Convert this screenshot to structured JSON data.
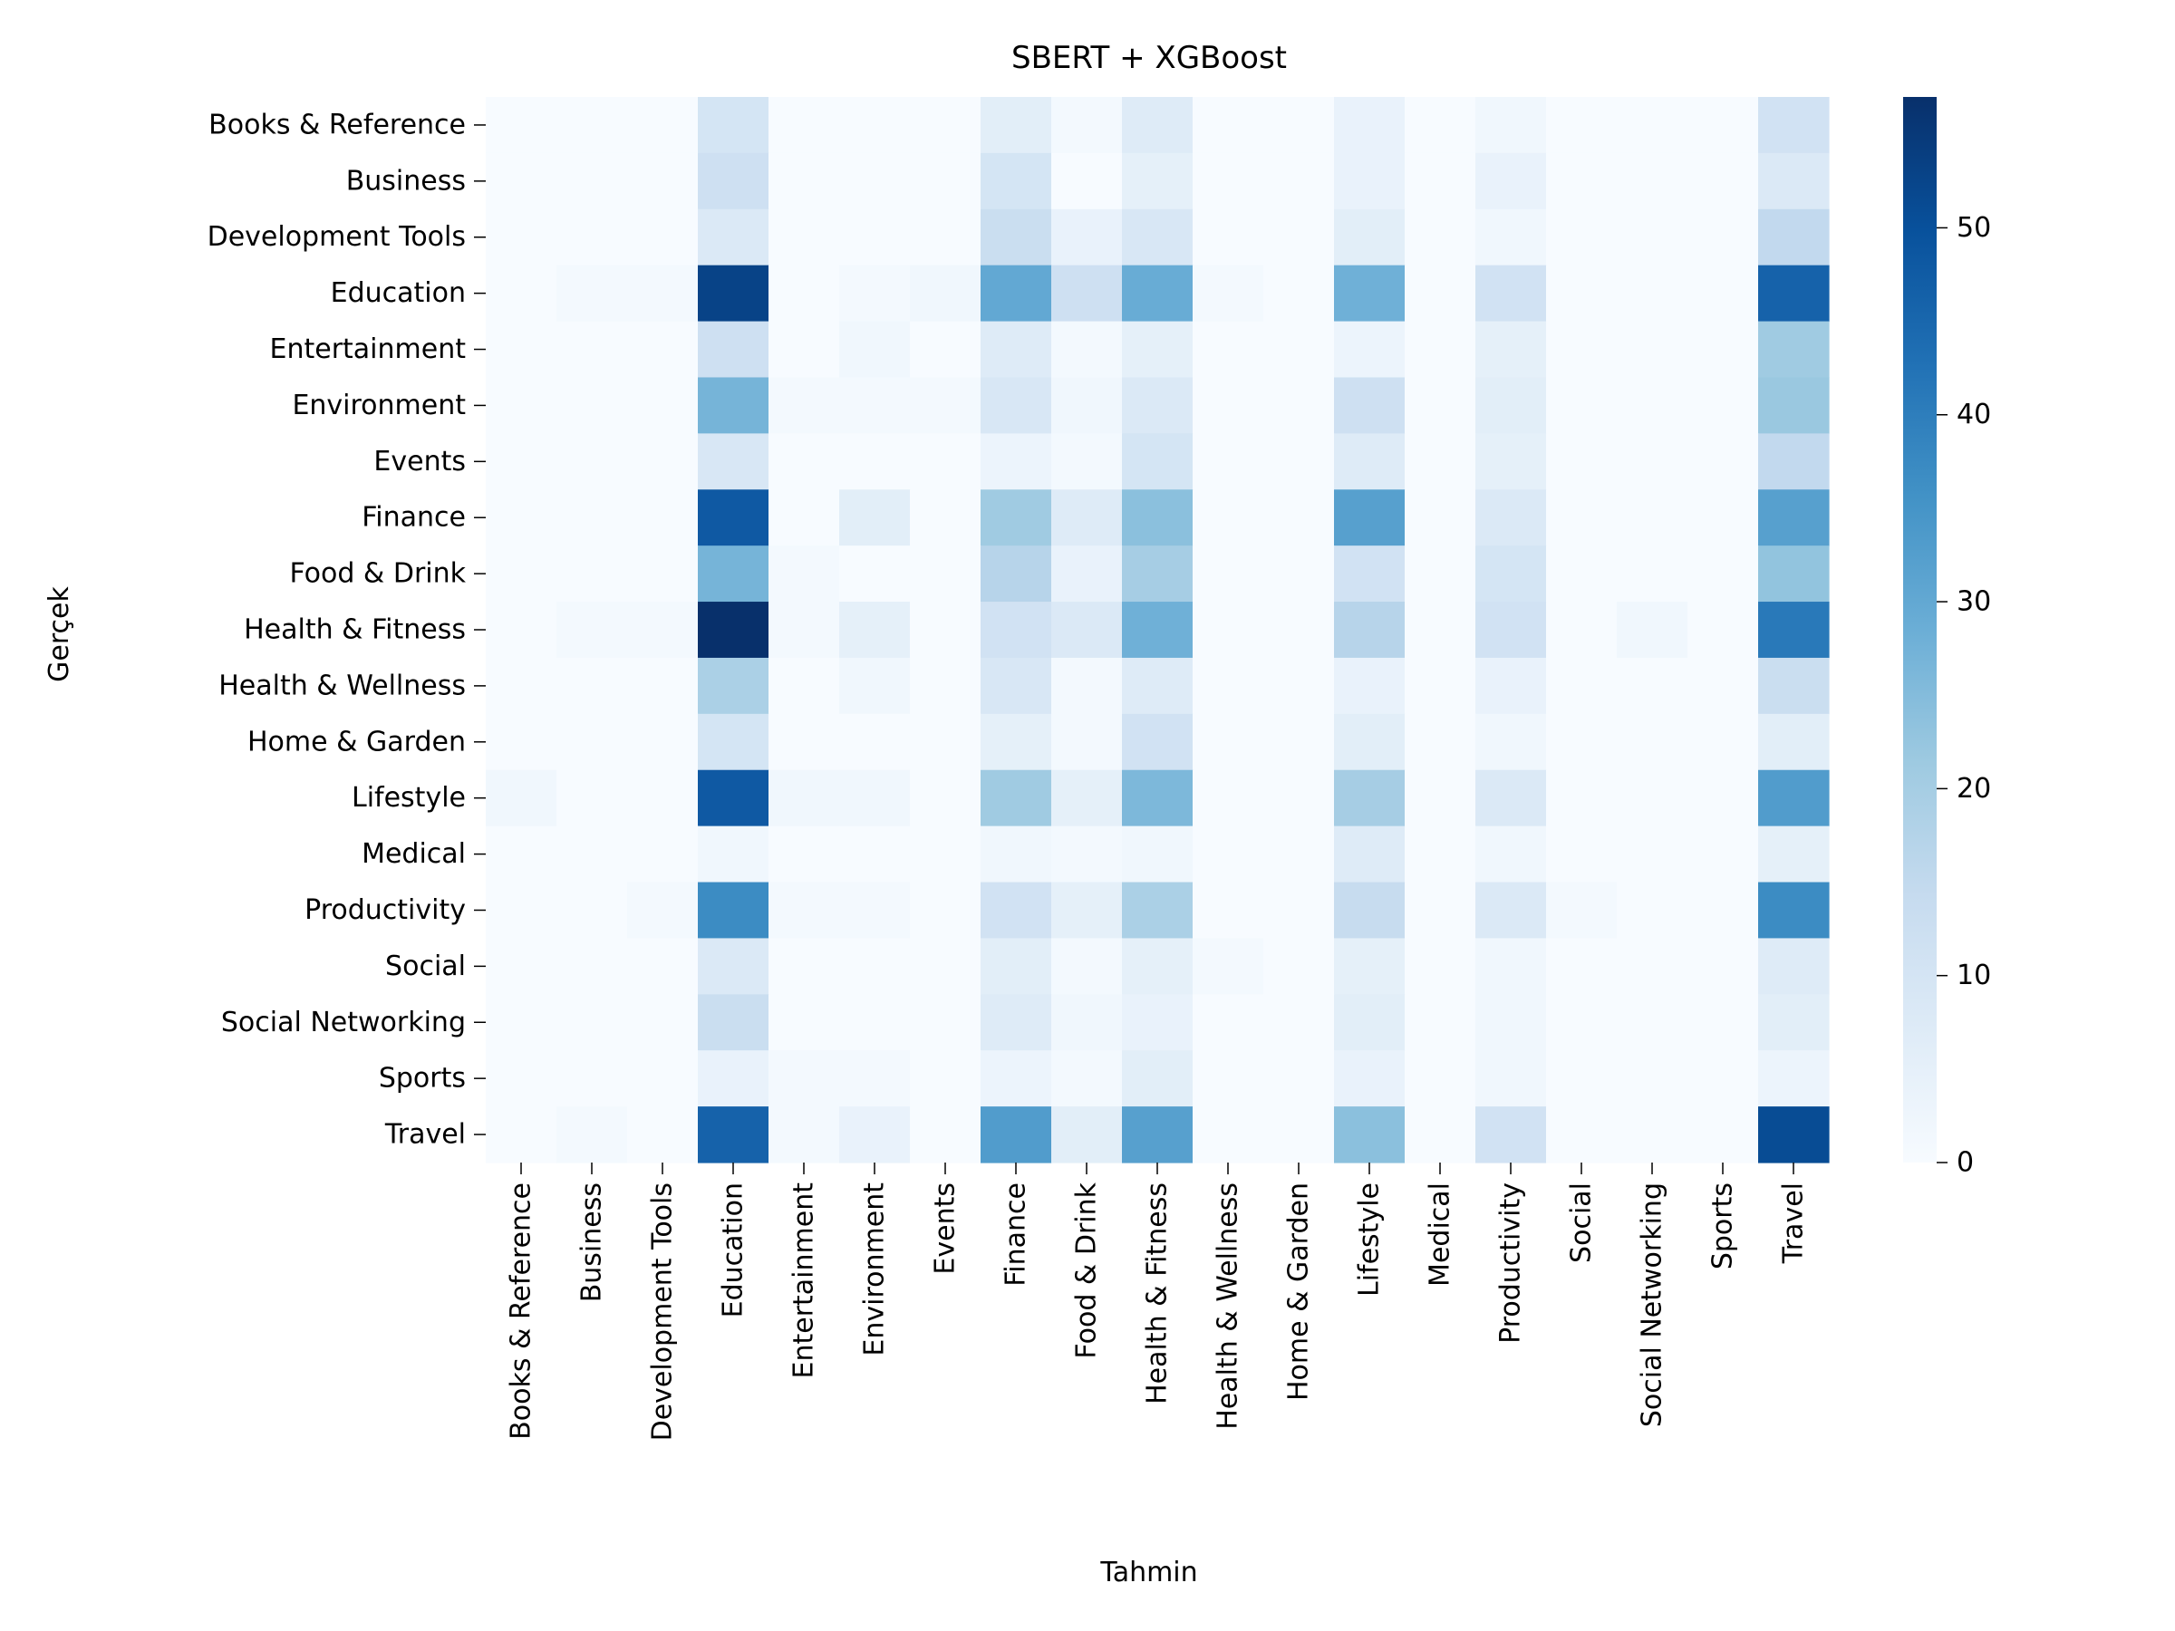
{
  "chart_data": {
    "type": "heatmap",
    "title": "SBERT + XGBoost",
    "xlabel": "Tahmin",
    "ylabel": "Gerçek",
    "x_categories": [
      "Books & Reference",
      "Business",
      "Development Tools",
      "Education",
      "Entertainment",
      "Environment",
      "Events",
      "Finance",
      "Food & Drink",
      "Health & Fitness",
      "Health & Wellness",
      "Home & Garden",
      "Lifestyle",
      "Medical",
      "Productivity",
      "Social",
      "Social Networking",
      "Sports",
      "Travel"
    ],
    "y_categories": [
      "Books & Reference",
      "Business",
      "Development Tools",
      "Education",
      "Entertainment",
      "Environment",
      "Events",
      "Finance",
      "Food & Drink",
      "Health & Fitness",
      "Health & Wellness",
      "Home & Garden",
      "Lifestyle",
      "Medical",
      "Productivity",
      "Social",
      "Social Networking",
      "Sports",
      "Travel"
    ],
    "values": [
      [
        0,
        0,
        0,
        10,
        0,
        0,
        0,
        6,
        1,
        7,
        0,
        0,
        4,
        0,
        2,
        0,
        0,
        0,
        11
      ],
      [
        0,
        0,
        0,
        12,
        0,
        0,
        0,
        10,
        0,
        5,
        0,
        0,
        4,
        0,
        4,
        0,
        0,
        0,
        8
      ],
      [
        0,
        0,
        0,
        8,
        0,
        0,
        0,
        13,
        4,
        9,
        0,
        0,
        6,
        0,
        2,
        0,
        0,
        0,
        15
      ],
      [
        0,
        1,
        1,
        53,
        0,
        1,
        2,
        30,
        12,
        29,
        1,
        0,
        28,
        0,
        11,
        0,
        0,
        0,
        46
      ],
      [
        0,
        0,
        0,
        12,
        0,
        2,
        0,
        7,
        1,
        5,
        0,
        0,
        3,
        0,
        5,
        0,
        0,
        0,
        21
      ],
      [
        0,
        0,
        0,
        27,
        1,
        1,
        1,
        9,
        2,
        8,
        0,
        0,
        12,
        0,
        6,
        0,
        0,
        0,
        22
      ],
      [
        0,
        0,
        0,
        9,
        0,
        0,
        0,
        3,
        1,
        10,
        0,
        0,
        7,
        0,
        5,
        0,
        0,
        0,
        15
      ],
      [
        0,
        0,
        0,
        48,
        0,
        6,
        0,
        21,
        7,
        24,
        0,
        0,
        32,
        0,
        8,
        0,
        0,
        0,
        32
      ],
      [
        0,
        0,
        0,
        27,
        1,
        0,
        0,
        17,
        4,
        20,
        0,
        0,
        11,
        0,
        10,
        0,
        0,
        0,
        23
      ],
      [
        0,
        1,
        1,
        57,
        1,
        5,
        0,
        11,
        8,
        28,
        0,
        0,
        17,
        0,
        11,
        0,
        2,
        0,
        41
      ],
      [
        0,
        0,
        0,
        19,
        0,
        2,
        0,
        9,
        1,
        7,
        0,
        0,
        4,
        0,
        4,
        0,
        0,
        0,
        13
      ],
      [
        0,
        0,
        0,
        10,
        0,
        0,
        0,
        5,
        1,
        11,
        0,
        0,
        6,
        0,
        2,
        0,
        0,
        0,
        6
      ],
      [
        2,
        0,
        0,
        48,
        2,
        2,
        0,
        21,
        5,
        26,
        0,
        0,
        20,
        0,
        8,
        0,
        0,
        0,
        33
      ],
      [
        0,
        0,
        0,
        2,
        0,
        0,
        0,
        2,
        1,
        2,
        0,
        0,
        7,
        0,
        2,
        0,
        0,
        0,
        5
      ],
      [
        0,
        0,
        1,
        37,
        1,
        1,
        0,
        11,
        5,
        19,
        0,
        0,
        14,
        0,
        8,
        1,
        0,
        0,
        37
      ],
      [
        0,
        0,
        0,
        8,
        0,
        0,
        0,
        6,
        1,
        5,
        1,
        0,
        5,
        0,
        2,
        0,
        0,
        0,
        7
      ],
      [
        0,
        0,
        0,
        13,
        0,
        0,
        0,
        7,
        2,
        4,
        0,
        0,
        6,
        0,
        2,
        0,
        0,
        0,
        6
      ],
      [
        0,
        0,
        0,
        4,
        1,
        1,
        0,
        3,
        1,
        6,
        0,
        0,
        4,
        0,
        2,
        0,
        0,
        0,
        3
      ],
      [
        0,
        1,
        0,
        46,
        1,
        4,
        0,
        33,
        6,
        32,
        0,
        0,
        24,
        0,
        11,
        0,
        0,
        0,
        51
      ]
    ],
    "colorbar": {
      "min": 0,
      "max": 57,
      "ticks": [
        0,
        10,
        20,
        30,
        40,
        50
      ],
      "colormap": "Blues"
    },
    "grid": false
  }
}
